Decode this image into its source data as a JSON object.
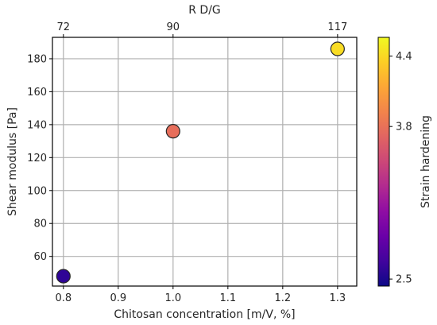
{
  "chart_data": {
    "type": "scatter",
    "xlabel": "Chitosan concentration [m/V, %]",
    "ylabel": "Shear modulus [Pa]",
    "top_xlabel": "R D/G",
    "colorbar_label": "Strain hardening",
    "colormap": "plasma",
    "grid": true,
    "xlim": [
      0.78,
      1.335
    ],
    "ylim": [
      42,
      193
    ],
    "x_ticks": [
      0.8,
      0.9,
      1.0,
      1.1,
      1.2,
      1.3
    ],
    "x_tick_labels": [
      "0.8",
      "0.9",
      "1.0",
      "1.1",
      "1.2",
      "1.3"
    ],
    "y_ticks": [
      60,
      80,
      100,
      120,
      140,
      160,
      180
    ],
    "y_tick_labels": [
      "60",
      "80",
      "100",
      "120",
      "140",
      "160",
      "180"
    ],
    "top_ticks": [
      {
        "x": 0.8,
        "label": "72"
      },
      {
        "x": 1.0,
        "label": "90"
      },
      {
        "x": 1.3,
        "label": "117"
      }
    ],
    "color_range": [
      2.44,
      4.56
    ],
    "colorbar_ticks": [
      2.5,
      3.8,
      4.4
    ],
    "colorbar_tick_labels": [
      "2.5",
      "3.8",
      "4.4"
    ],
    "points": [
      {
        "x": 0.8,
        "y": 48,
        "strain_hardening": 2.5,
        "color": "#2f0596"
      },
      {
        "x": 1.0,
        "y": 136,
        "strain_hardening": 3.8,
        "color": "#e76e5b"
      },
      {
        "x": 1.3,
        "y": 186,
        "strain_hardening": 4.4,
        "color": "#f9dc24"
      }
    ]
  }
}
